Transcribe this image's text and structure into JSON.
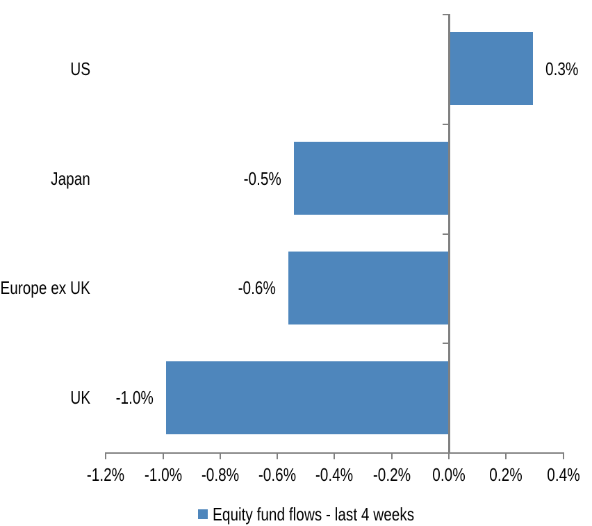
{
  "chart_data": {
    "type": "bar",
    "orientation": "horizontal",
    "title": "",
    "categories": [
      "US",
      "Japan",
      "Europe ex UK",
      "UK"
    ],
    "values": [
      0.3,
      -0.5,
      -0.6,
      -1.0
    ],
    "value_unit": "%",
    "data_labels": [
      "0.3%",
      "-0.5%",
      "-0.6%",
      "-1.0%"
    ],
    "bar_extents_pct": [
      0.29,
      -0.542,
      -0.562,
      -0.988
    ],
    "x_axis": {
      "min": -1.2,
      "max": 0.4,
      "ticks": [
        -1.2,
        -1.0,
        -0.8,
        -0.6,
        -0.4,
        -0.2,
        0.0,
        0.2,
        0.4
      ],
      "tick_labels": [
        "-1.2%",
        "-1.0%",
        "-0.8%",
        "-0.6%",
        "-0.4%",
        "-0.2%",
        "0.0%",
        "0.2%",
        "0.4%"
      ]
    },
    "grid": false,
    "legend_position": "bottom",
    "legend": [
      {
        "label": "Equity fund flows - last 4 weeks",
        "color": "#4E86BC"
      }
    ],
    "colors": {
      "bar": "#4E86BC",
      "axis": "#808080",
      "text": "#000000",
      "background": "#FFFFFF"
    }
  }
}
